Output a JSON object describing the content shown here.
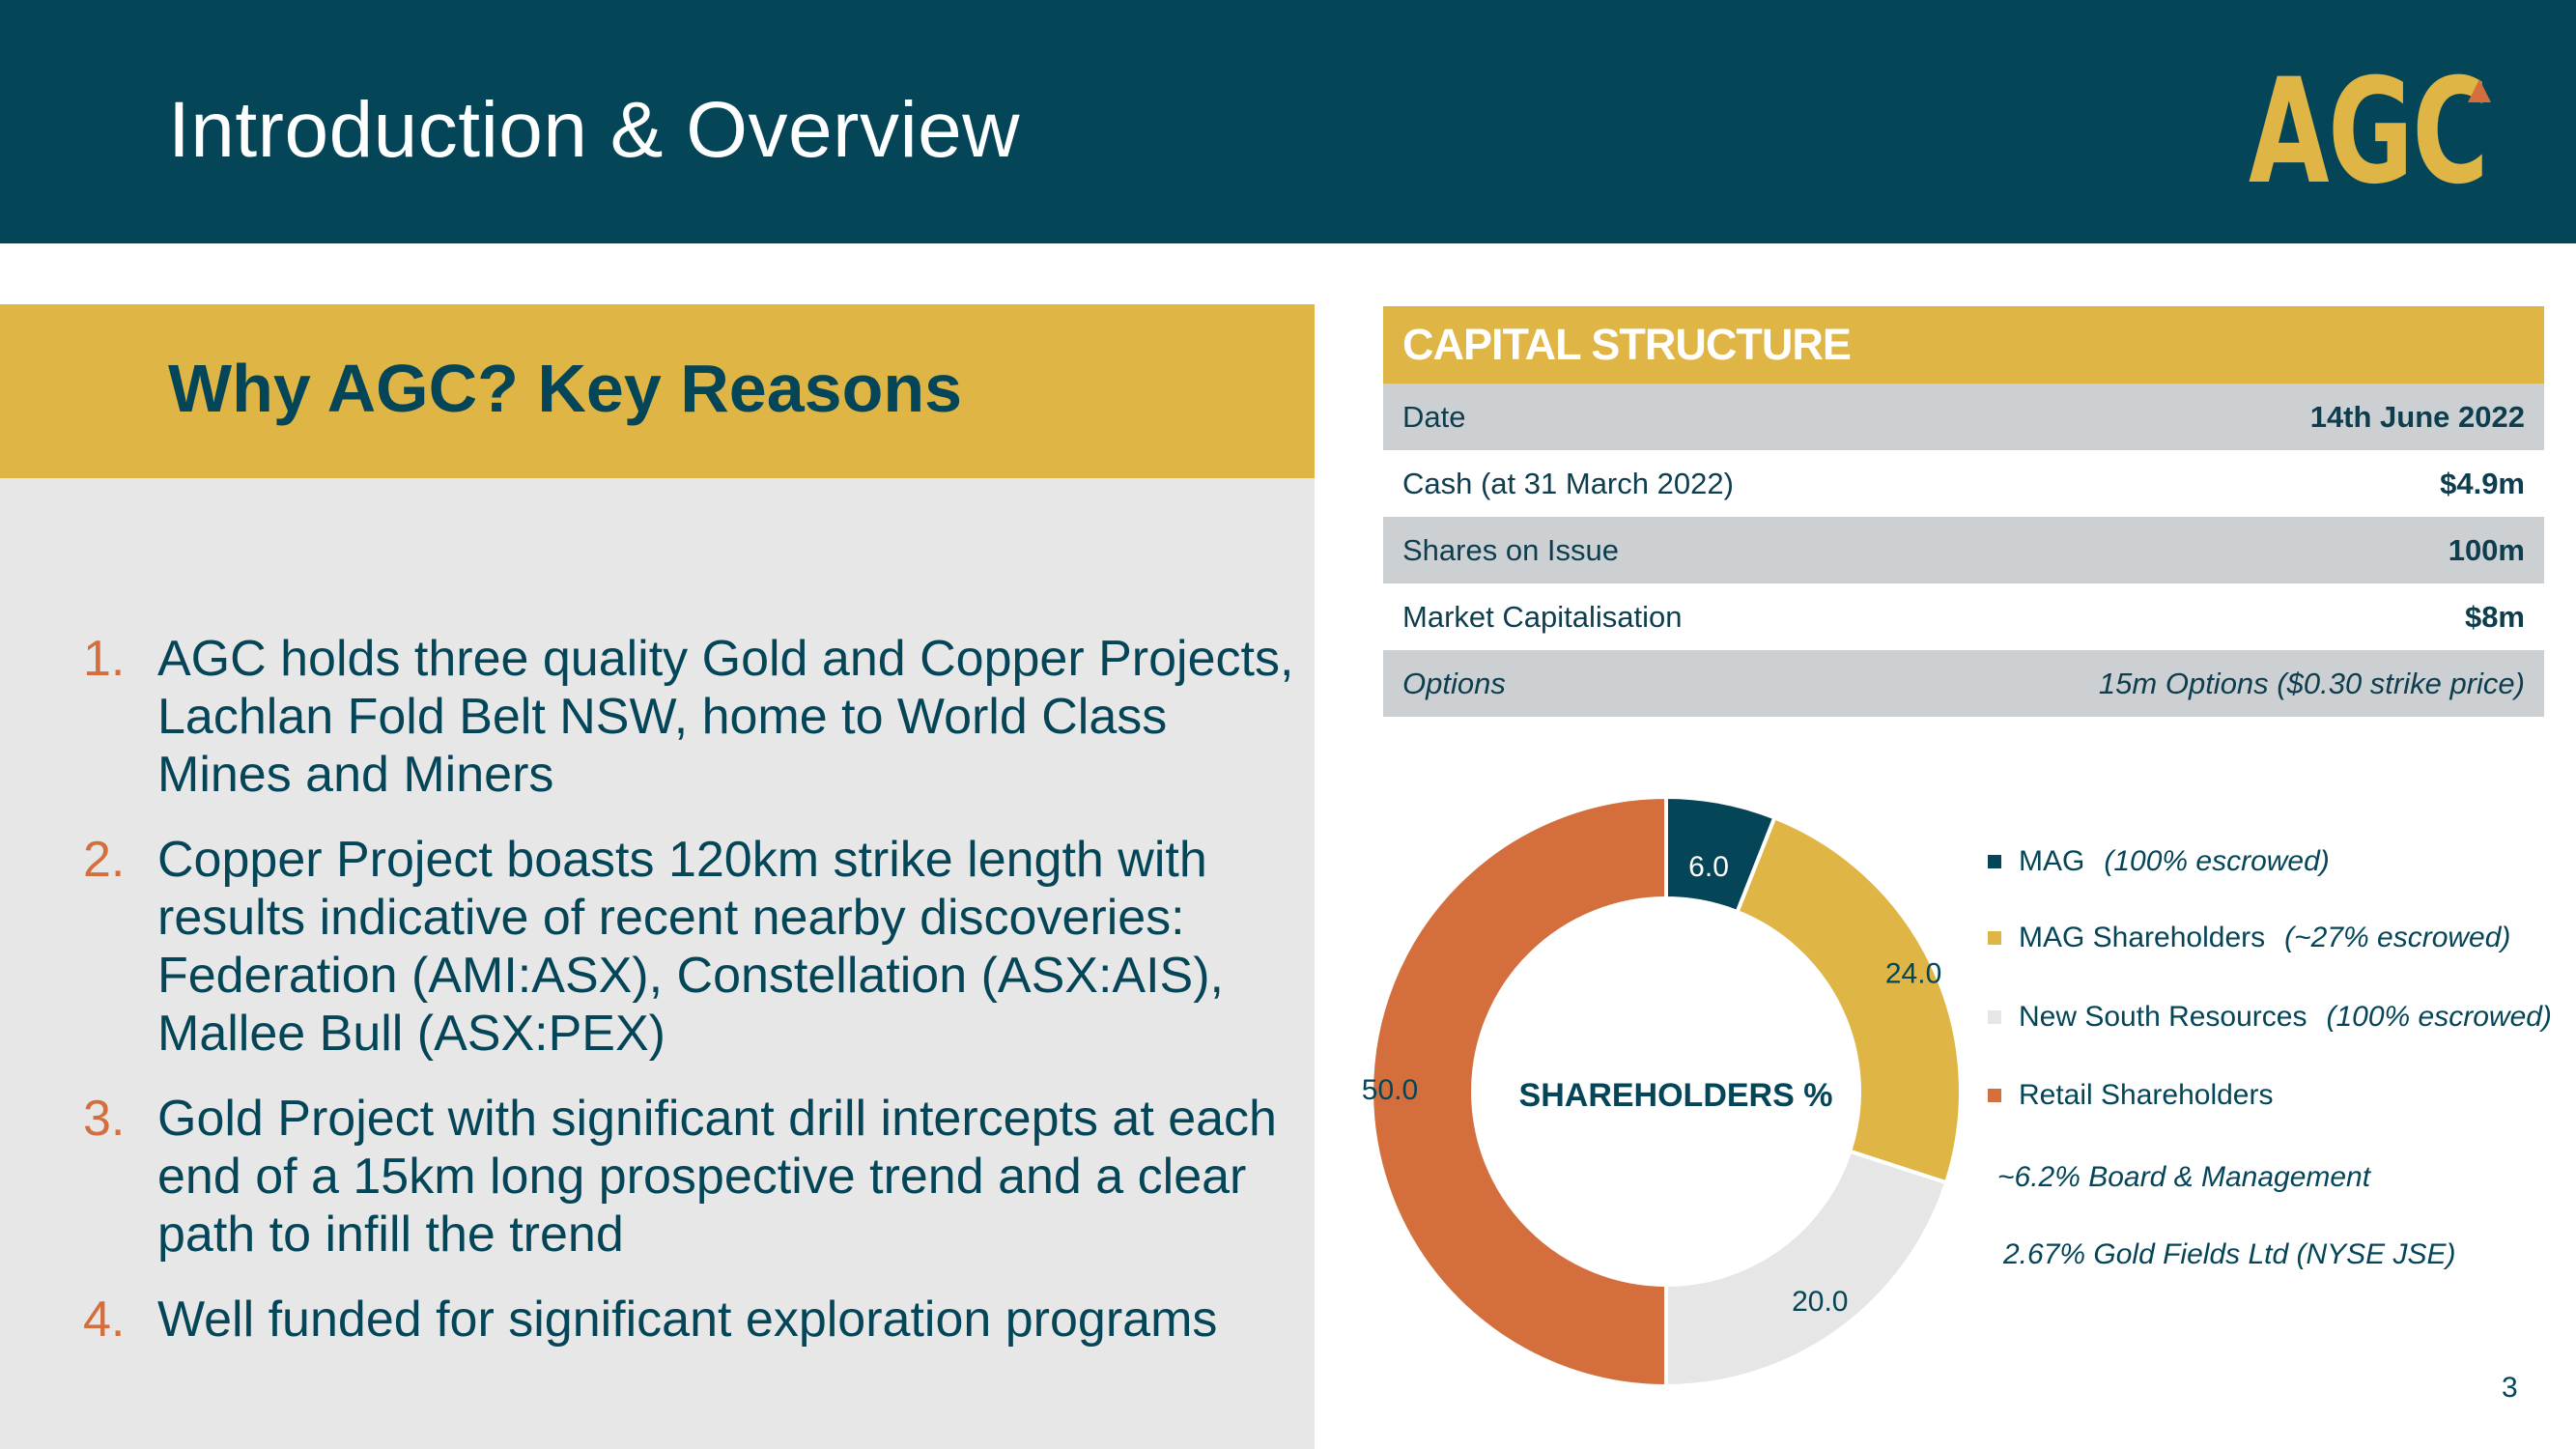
{
  "header": {
    "title": "Introduction & Overview",
    "logo_text": "AGC"
  },
  "reasons_panel": {
    "heading": "Why AGC? Key Reasons",
    "items": [
      {
        "num": "1.",
        "text": "AGC holds three quality Gold and Copper Projects, Lachlan Fold Belt NSW, home to World Class Mines and Miners"
      },
      {
        "num": "2.",
        "text": "Copper Project boasts 120km strike length with results indicative of recent nearby discoveries: Federation (AMI:ASX), Constellation (ASX:AIS), Mallee Bull (ASX:PEX)"
      },
      {
        "num": "3.",
        "text": "Gold Project with significant drill intercepts at each end of a 15km long prospective trend and a clear path to infill the trend"
      },
      {
        "num": "4.",
        "text": "Well funded for significant exploration programs"
      }
    ]
  },
  "capital_structure": {
    "heading": "CAPITAL STRUCTURE",
    "rows": [
      {
        "label": "Date",
        "value": "14th June 2022"
      },
      {
        "label": "Cash (at 31 March 2022)",
        "value": "$4.9m"
      },
      {
        "label": "Shares on Issue",
        "value": "100m"
      },
      {
        "label": "Market Capitalisation",
        "value": "$8m"
      },
      {
        "label": "Options",
        "value": "15m Options ($0.30 strike price)"
      }
    ]
  },
  "chart_data": {
    "type": "pie",
    "variant": "donut",
    "title": "SHAREHOLDERS %",
    "categories": [
      "MAG",
      "MAG Shareholders",
      "New South Resources",
      "Retail Shareholders"
    ],
    "values": [
      6.0,
      24.0,
      20.0,
      50.0
    ],
    "value_labels": [
      "6.0",
      "24.0",
      "20.0",
      "50.0"
    ],
    "colors": [
      "#054558",
      "#dfb545",
      "#e6e6e6",
      "#d46f3d"
    ],
    "legend": [
      {
        "label": "MAG",
        "note": "(100% escrowed)"
      },
      {
        "label": "MAG Shareholders",
        "note": "(~27% escrowed)"
      },
      {
        "label": "New South Resources",
        "note": "(100% escrowed)"
      },
      {
        "label": "Retail Shareholders",
        "note": ""
      }
    ],
    "legend_position": "right"
  },
  "notes": {
    "board": "~6.2% Board & Management",
    "gold_fields": "2.67% Gold Fields Ltd (NYSE JSE)"
  },
  "page_number": "3"
}
